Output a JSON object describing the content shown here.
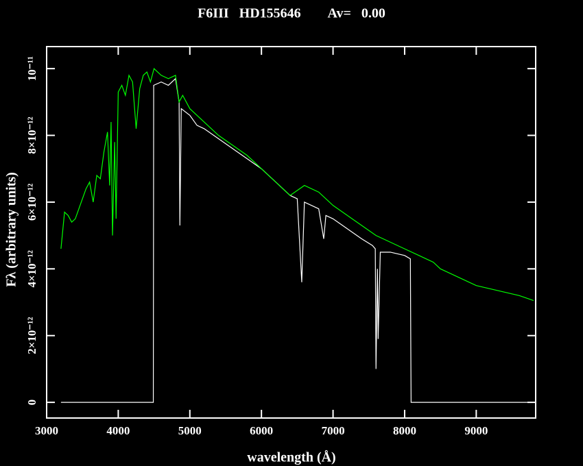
{
  "chart_data": {
    "type": "line",
    "title": "F6III   HD155646        Av=   0.00",
    "x_label": "wavelength (Å)",
    "y_label": "Fλ (arbitrary units)",
    "xlim": [
      3000,
      9830
    ],
    "ylim": [
      -4.7e-13,
      1.066e-11
    ],
    "xticks": [
      3000,
      4000,
      5000,
      6000,
      7000,
      8000,
      9000
    ],
    "yticks": [
      0,
      {
        "value": 2e-12,
        "label": "2×10⁻¹²"
      },
      {
        "value": 4e-12,
        "label": "4×10⁻¹²"
      },
      {
        "value": 6e-12,
        "label": "6×10⁻¹²"
      },
      {
        "value": 8e-12,
        "label": "8×10⁻¹²"
      },
      {
        "value": 1e-11,
        "label": "10⁻¹¹"
      }
    ],
    "series": [
      {
        "color": "#ffffff",
        "x": [
          3200,
          4490,
          4495,
          4600,
          4700,
          4800,
          4850,
          4861,
          4880,
          5000,
          5100,
          5200,
          5400,
          5600,
          5800,
          6000,
          6200,
          6400,
          6500,
          6563,
          6600,
          6800,
          6870,
          6900,
          7000,
          7200,
          7400,
          7550,
          7590,
          7600,
          7620,
          7630,
          7660,
          7800,
          8000,
          8080,
          8090,
          9800
        ],
        "values": [
          0,
          0,
          9.5e-12,
          9.6e-12,
          9.5e-12,
          9.7e-12,
          9e-12,
          5.3e-12,
          8.8e-12,
          8.6e-12,
          8.3e-12,
          8.2e-12,
          7.9e-12,
          7.6e-12,
          7.3e-12,
          7e-12,
          6.6e-12,
          6.2e-12,
          6.1e-12,
          3.6e-12,
          6e-12,
          5.8e-12,
          4.9e-12,
          5.6e-12,
          5.5e-12,
          5.2e-12,
          4.9e-12,
          4.7e-12,
          4.6e-12,
          1e-12,
          4e-12,
          1.9e-12,
          4.5e-12,
          4.5e-12,
          4.4e-12,
          4.3e-12,
          0,
          0
        ]
      },
      {
        "color": "#00ff00",
        "x": [
          3200,
          3250,
          3300,
          3350,
          3400,
          3450,
          3500,
          3550,
          3600,
          3650,
          3700,
          3750,
          3800,
          3850,
          3880,
          3900,
          3920,
          3950,
          3970,
          4000,
          4050,
          4100,
          4150,
          4200,
          4250,
          4300,
          4350,
          4400,
          4450,
          4500,
          4550,
          4600,
          4700,
          4800,
          4850,
          4900,
          5000,
          5200,
          5400,
          5600,
          5800,
          6000,
          6200,
          6400,
          6600,
          6800,
          7000,
          7200,
          7400,
          7600,
          7800,
          8000,
          8200,
          8400,
          8500,
          8600,
          8700,
          8800,
          9000,
          9200,
          9400,
          9600,
          9800
        ],
        "values": [
          4.6e-12,
          5.7e-12,
          5.6e-12,
          5.4e-12,
          5.5e-12,
          5.8e-12,
          6.1e-12,
          6.4e-12,
          6.6e-12,
          6e-12,
          6.8e-12,
          6.7e-12,
          7.5e-12,
          8.1e-12,
          6.5e-12,
          8.4e-12,
          5e-12,
          7.8e-12,
          5.5e-12,
          9.3e-12,
          9.5e-12,
          9.2e-12,
          9.8e-12,
          9.6e-12,
          8.2e-12,
          9.4e-12,
          9.8e-12,
          9.9e-12,
          9.6e-12,
          1e-11,
          9.9e-12,
          9.8e-12,
          9.7e-12,
          9.8e-12,
          9e-12,
          9.2e-12,
          8.8e-12,
          8.4e-12,
          8e-12,
          7.7e-12,
          7.4e-12,
          7e-12,
          6.6e-12,
          6.2e-12,
          6.5e-12,
          6.3e-12,
          5.9e-12,
          5.6e-12,
          5.3e-12,
          5e-12,
          4.8e-12,
          4.6e-12,
          4.4e-12,
          4.2e-12,
          4e-12,
          3.9e-12,
          3.8e-12,
          3.7e-12,
          3.5e-12,
          3.4e-12,
          3.3e-12,
          3.2e-12,
          3.05e-12
        ]
      }
    ]
  }
}
